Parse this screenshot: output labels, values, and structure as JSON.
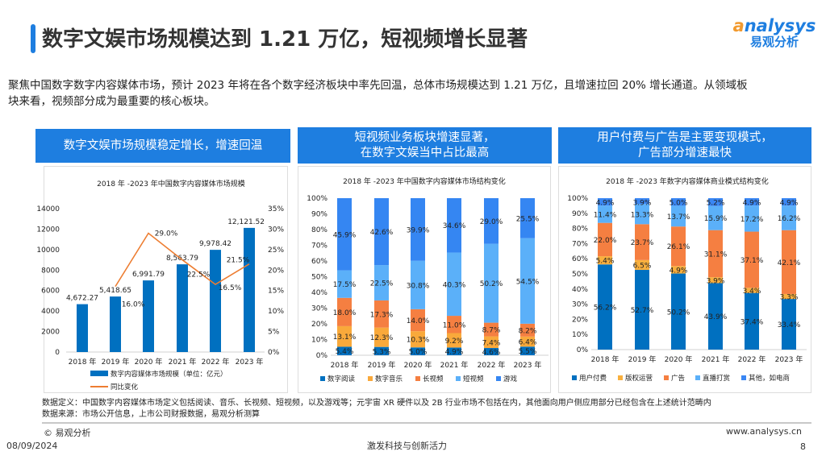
{
  "title": "数字文娱市场规模达到 1.21 万亿，短视频增长显著",
  "logo": {
    "en": "nalysys",
    "cn": "易观分析"
  },
  "intro": "聚焦中国数字数字内容媒体市场，预计 2023 年将在各个数字经济板块中率先回温，总体市场规模达到 1.21 万亿，且增速拉回 20% 增长通道。从领域板块来看，视频部分成为最重要的核心板块。",
  "panels": [
    {
      "header": "数字文娱市场规模稳定增长，增速回温"
    },
    {
      "header": "短视频业务板块增速显著，\n在数字文娱当中占比最高"
    },
    {
      "header": "用户付费与广告是主要变现模式，\n广告部分增速最快"
    }
  ],
  "chart_data": [
    {
      "type": "bar+line",
      "title": "2018 年 -2023 年中国数字内容媒体市场规模",
      "categories": [
        "2018 年",
        "2019 年",
        "2020 年",
        "2021 年",
        "2022 年",
        "2023 年"
      ],
      "series": [
        {
          "name": "数字内容媒体市场规模（单位：亿元）",
          "type": "bar",
          "axis": "left",
          "color": "#0070c0",
          "values": [
            4672.27,
            5418.65,
            6991.79,
            8563.79,
            9978.42,
            12121.52
          ],
          "labels": [
            "4,672.27",
            "5,418.65",
            "6,991.79",
            "8,563.79",
            "9,978.42",
            "12,121.52"
          ]
        },
        {
          "name": "同比变化",
          "type": "line",
          "axis": "right",
          "color": "#ed7d31",
          "values": [
            null,
            16.0,
            29.0,
            22.5,
            16.5,
            21.5
          ],
          "labels": [
            "",
            "16.0%",
            "29.0%",
            "22.5%",
            "16.5%",
            "21.5%"
          ]
        }
      ],
      "ylim": [
        0,
        14000
      ],
      "yticks": [
        "0",
        "2000",
        "4000",
        "6000",
        "8000",
        "10000",
        "12000",
        "14000"
      ],
      "y2lim": [
        0,
        35
      ],
      "y2ticks": [
        "0%",
        "5%",
        "10%",
        "15%",
        "20%",
        "25%",
        "30%",
        "35%"
      ],
      "legend": "bottom"
    },
    {
      "type": "stacked-bar",
      "title": "2018 年 -2023 年中国数字内容媒体市场结构变化",
      "categories": [
        "2018 年",
        "2019 年",
        "2020 年",
        "2021 年",
        "2022 年",
        "2023 年"
      ],
      "yticks": [
        "0%",
        "10%",
        "20%",
        "30%",
        "40%",
        "50%",
        "60%",
        "70%",
        "80%",
        "90%",
        "100%"
      ],
      "series": [
        {
          "name": "数字阅读",
          "color": "#0070c0",
          "values": [
            5.4,
            5.3,
            5.0,
            4.9,
            4.6,
            5.5
          ]
        },
        {
          "name": "数字音乐",
          "color": "#f9a93b",
          "values": [
            13.1,
            12.3,
            10.3,
            9.2,
            7.4,
            6.4
          ]
        },
        {
          "name": "长视频",
          "color": "#f57f41",
          "values": [
            18.0,
            17.3,
            14.0,
            11.0,
            8.7,
            8.2
          ]
        },
        {
          "name": "短视频",
          "color": "#5bb0f9",
          "values": [
            17.5,
            22.5,
            30.8,
            40.3,
            50.2,
            54.5
          ]
        },
        {
          "name": "游戏",
          "color": "#3586f2",
          "values": [
            45.9,
            42.6,
            39.9,
            34.6,
            29.0,
            25.5
          ]
        }
      ],
      "legend": "bottom"
    },
    {
      "type": "stacked-bar",
      "title": "2018 年 -2023 年数字内容媒体商业模式结构变化",
      "categories": [
        "2018 年",
        "2019 年",
        "2020 年",
        "2021 年",
        "2022 年",
        "2023 年"
      ],
      "yticks": [
        "0%",
        "10%",
        "20%",
        "30%",
        "40%",
        "50%",
        "60%",
        "70%",
        "80%",
        "90%",
        "100%"
      ],
      "series": [
        {
          "name": "用户付费",
          "color": "#0070c0",
          "values": [
            56.2,
            52.7,
            50.2,
            43.9,
            37.4,
            33.4
          ]
        },
        {
          "name": "版权运营",
          "color": "#f9b03e",
          "values": [
            5.4,
            6.5,
            4.9,
            3.9,
            3.4,
            3.3
          ]
        },
        {
          "name": "广告",
          "color": "#f57f41",
          "values": [
            22.0,
            23.7,
            26.1,
            31.1,
            37.1,
            42.1
          ]
        },
        {
          "name": "直播打赏",
          "color": "#5bb0f9",
          "values": [
            11.4,
            13.3,
            13.7,
            15.9,
            17.2,
            16.2
          ]
        },
        {
          "name": "其他，如电商",
          "color": "#3a87f4",
          "values": [
            4.9,
            3.9,
            5.0,
            5.2,
            4.9,
            4.9
          ]
        }
      ],
      "legend": "bottom"
    }
  ],
  "notes": {
    "definition": "数据定义：中国数字内容媒体市场定义包括阅读、音乐、长视频、短视频，以及游戏等；元宇宙 XR 硬件以及 2B 行业市场不包括在内，其他面向用户侧应用部分已经包含在上述统计范畴内",
    "source": "数据来源：市场公开信息，上市公司财报数据，易观分析测算"
  },
  "footer": {
    "copyright": "© 易观分析",
    "date": "08/09/2024",
    "slogan": "激发科技与创新活力",
    "url": "www.analysys.cn",
    "page": "8"
  }
}
